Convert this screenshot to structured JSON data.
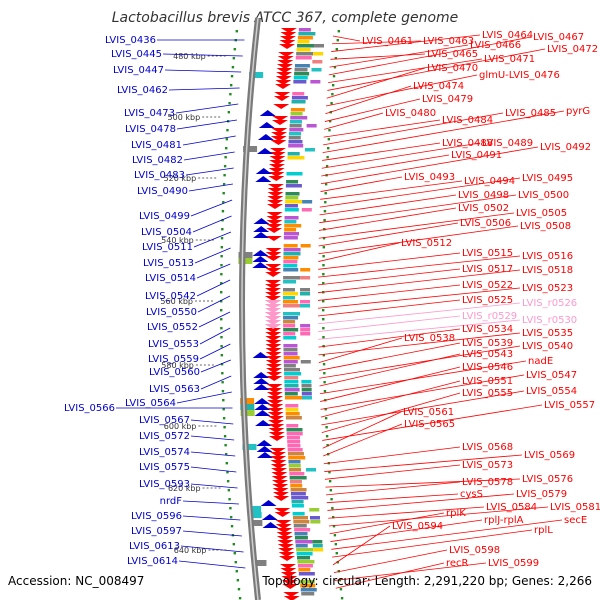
{
  "title": "Lactobacillus brevis ATCC 367, complete genome",
  "footer": {
    "accession": "Accession: NC_008497",
    "topology": "Topology: circular; Length: 2,291,220 bp; Genes: 2,266"
  },
  "colors": {
    "minus_strand": "#0000cc",
    "plus_strand": "#ff0000",
    "rna": "#ff99cc",
    "backbone": "#888888",
    "tick_dot": "#228b22"
  },
  "ticks": [
    "480 kbp",
    "500 kbp",
    "520 kbp",
    "540 kbp",
    "560 kbp",
    "580 kbp",
    "600 kbp",
    "620 kbp",
    "640 kbp"
  ],
  "left_labels": [
    "LVIS_0436",
    "LVIS_0445",
    "LVIS_0447",
    "LVIS_0462",
    "LVIS_0473",
    "LVIS_0478",
    "LVIS_0481",
    "LVIS_0482",
    "LVIS_0483",
    "LVIS_0490",
    "LVIS_0499",
    "LVIS_0504",
    "LVIS_0511",
    "LVIS_0513",
    "LVIS_0514",
    "LVIS_0542",
    "LVIS_0550",
    "LVIS_0552",
    "LVIS_0553",
    "LVIS_0559",
    "LVIS_0560",
    "LVIS_0563",
    "LVIS_0564",
    "LVIS_0566",
    "LVIS_0567",
    "LVIS_0572",
    "LVIS_0574",
    "LVIS_0575",
    "LVIS_0593",
    "nrdF",
    "LVIS_0596",
    "LVIS_0597",
    "LVIS_0613",
    "LVIS_0614"
  ],
  "right_labels": [
    "LVIS_0461",
    "LVIS_0463",
    "LVIS_0464",
    "LVIS_0465",
    "LVIS_0466",
    "LVIS_0467",
    "LVIS_0471",
    "LVIS_0472",
    "LVIS_0470",
    "glmU-LVIS_0476",
    "LVIS_0474",
    "LVIS_0479",
    "LVIS_0480",
    "LVIS_0484",
    "LVIS_0485",
    "pyrG",
    "LVIS_0488",
    "LVIS_0489",
    "LVIS_0491",
    "LVIS_0492",
    "LVIS_0493",
    "LVIS_0494",
    "LVIS_0495",
    "LVIS_0498",
    "LVIS_0500",
    "LVIS_0502",
    "LVIS_0505",
    "LVIS_0506",
    "LVIS_0508",
    "LVIS_0512",
    "LVIS_0515",
    "LVIS_0516",
    "LVIS_0517",
    "LVIS_0518",
    "LVIS_0522",
    "LVIS_0523",
    "LVIS_0525",
    "LVIS_r0526",
    "LVIS_r0529",
    "LVIS_r0530",
    "LVIS_0534",
    "LVIS_0535",
    "LVIS_0538",
    "LVIS_0539",
    "LVIS_0540",
    "LVIS_0543",
    "nadE",
    "LVIS_0546",
    "LVIS_0547",
    "LVIS_0551",
    "LVIS_0554",
    "LVIS_0555",
    "LVIS_0557",
    "LVIS_0561",
    "LVIS_0565",
    "LVIS_0568",
    "LVIS_0569",
    "LVIS_0573",
    "LVIS_0576",
    "LVIS_0578",
    "cysS",
    "LVIS_0579",
    "LVIS_0584",
    "LVIS_0581",
    "rplK",
    "rplJ-rplA",
    "secE",
    "rplL",
    "LVIS_0594",
    "LVIS_0598",
    "LVIS_0599",
    "recR"
  ]
}
